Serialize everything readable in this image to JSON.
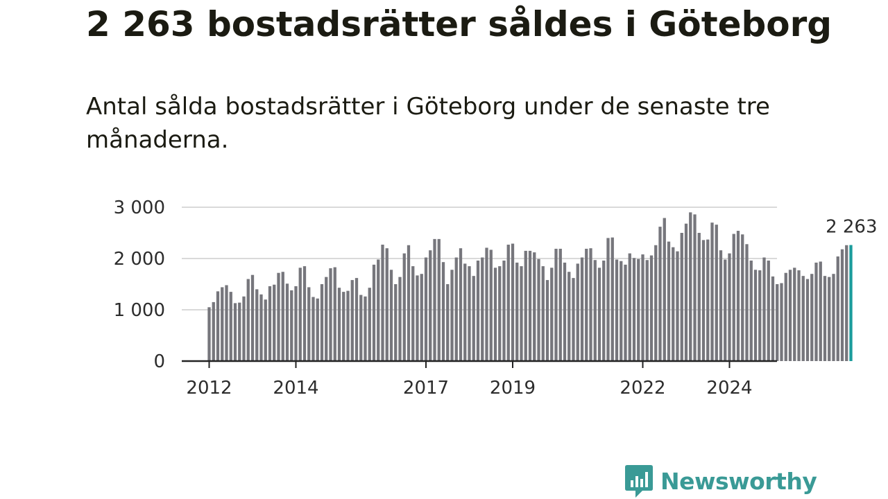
{
  "title": "2 263 bostadsrätter såldes i Göteborg",
  "subtitle": "Antal sålda bostadsrätter i Göteborg under de senaste tre månaderna.",
  "brand": {
    "name": "Newsworthy",
    "color": "#3a9a96",
    "icon": "newsworthy-logo-icon"
  },
  "colors": {
    "bar": "#76767c",
    "highlight": "#1a9c9c",
    "grid": "#d9d9d9",
    "axis": "#222222"
  },
  "chart_data": {
    "type": "bar",
    "ylim": [
      0,
      3000
    ],
    "yticks": [
      0,
      1000,
      2000,
      3000
    ],
    "ytick_labels": [
      "0",
      "1 000",
      "2 000",
      "3 000"
    ],
    "xtick_labels": [
      {
        "label": "2012",
        "index": 0
      },
      {
        "label": "2014",
        "index": 20
      },
      {
        "label": "2017",
        "index": 50
      },
      {
        "label": "2019",
        "index": 70
      },
      {
        "label": "2022",
        "index": 100
      },
      {
        "label": "2024",
        "index": 120
      }
    ],
    "last_label": "2 263",
    "series": [
      {
        "name": "Antal sålda bostadsrätter",
        "values": [
          1050,
          1150,
          1360,
          1440,
          1480,
          1350,
          1130,
          1140,
          1260,
          1600,
          1680,
          1400,
          1300,
          1200,
          1460,
          1490,
          1720,
          1740,
          1510,
          1380,
          1460,
          1820,
          1850,
          1440,
          1250,
          1220,
          1500,
          1640,
          1810,
          1830,
          1430,
          1350,
          1370,
          1580,
          1620,
          1290,
          1260,
          1430,
          1880,
          1980,
          2270,
          2200,
          1780,
          1500,
          1640,
          2100,
          2260,
          1850,
          1670,
          1700,
          2020,
          2160,
          2380,
          2380,
          1930,
          1500,
          1780,
          2020,
          2200,
          1900,
          1850,
          1660,
          1960,
          2020,
          2210,
          2170,
          1820,
          1850,
          1960,
          2270,
          2290,
          1920,
          1850,
          2150,
          2150,
          2120,
          1990,
          1850,
          1580,
          1820,
          2190,
          2190,
          1920,
          1740,
          1620,
          1900,
          2020,
          2190,
          2200,
          1970,
          1820,
          1960,
          2400,
          2410,
          1980,
          1950,
          1880,
          2100,
          2010,
          1990,
          2080,
          1970,
          2060,
          2260,
          2620,
          2790,
          2330,
          2220,
          2140,
          2500,
          2680,
          2900,
          2860,
          2500,
          2360,
          2370,
          2700,
          2660,
          2160,
          1980,
          2100,
          2480,
          2540,
          2470,
          2280,
          1960,
          1780,
          1770,
          2020,
          1960,
          1650,
          1500,
          1520,
          1720,
          1780,
          1820,
          1770,
          1660,
          1600,
          1700,
          1920,
          1940,
          1660,
          1640,
          1700,
          2040,
          2180,
          2260,
          2263
        ]
      }
    ]
  }
}
